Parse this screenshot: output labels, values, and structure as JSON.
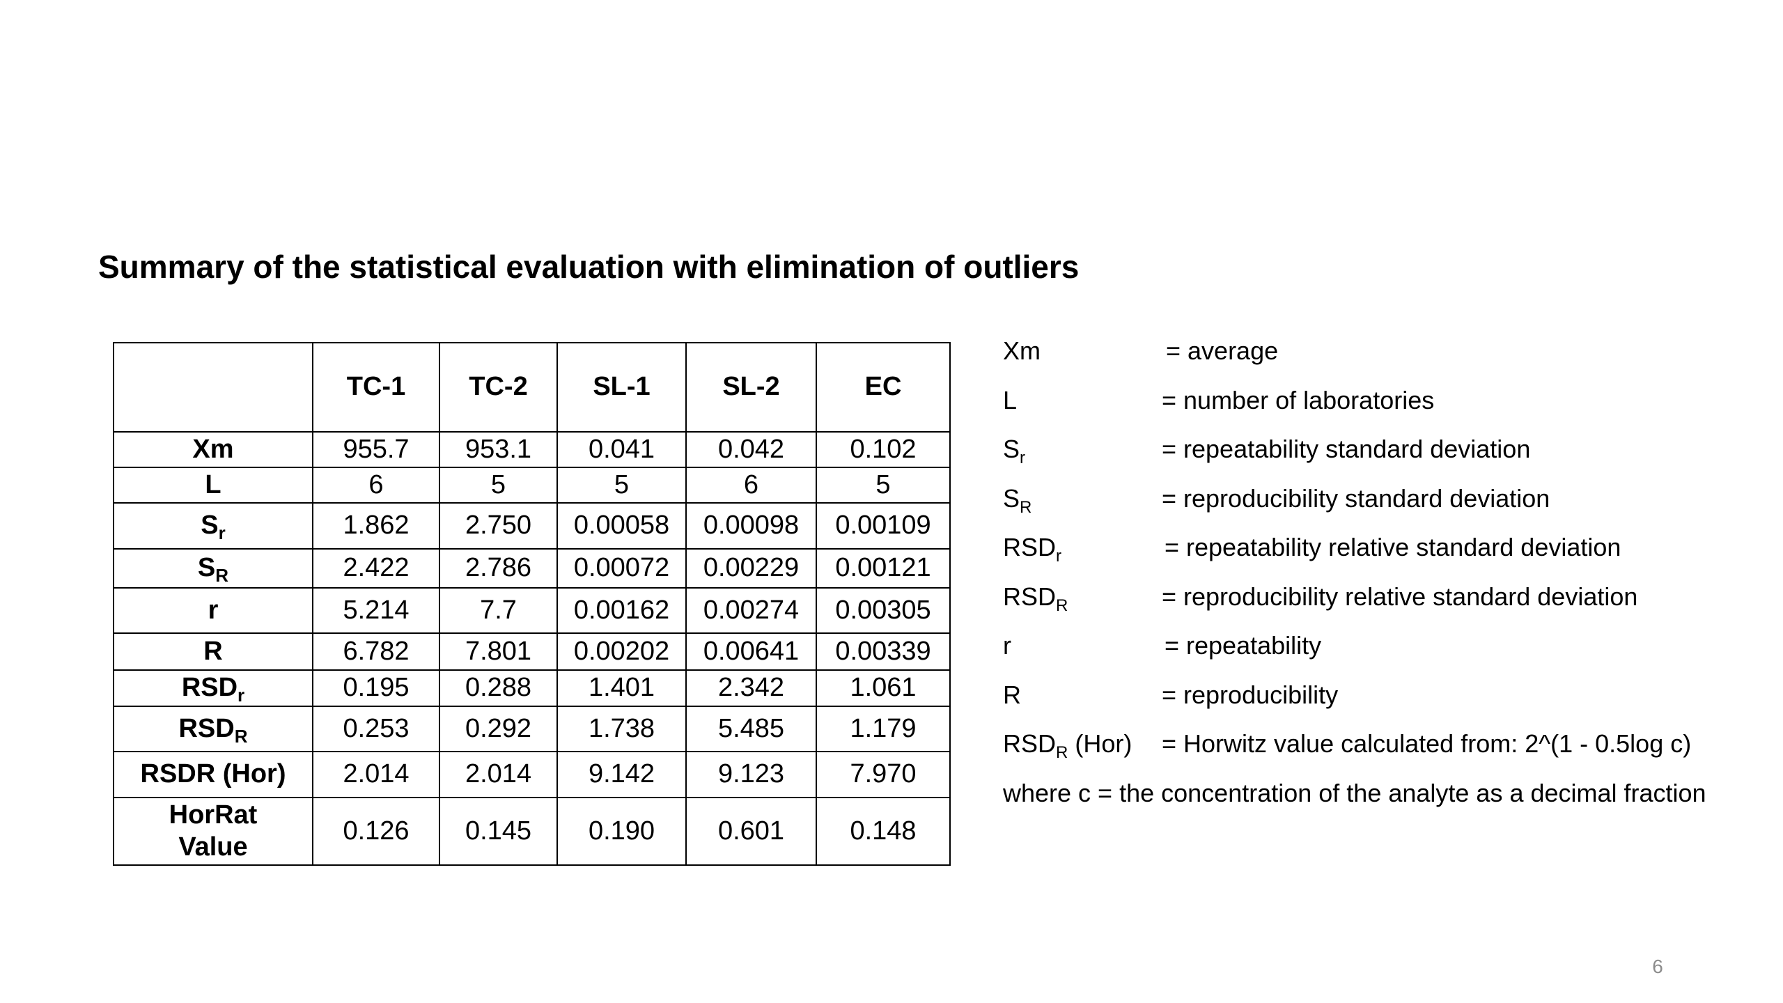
{
  "title": "Summary of the statistical evaluation with elimination of outliers",
  "table": {
    "columns": [
      "TC-1",
      "TC-2",
      "SL-1",
      "SL-2",
      "EC"
    ],
    "rows": [
      {
        "base": "Xm",
        "sub": "",
        "values": [
          "955.7",
          "953.1",
          "0.041",
          "0.042",
          "0.102"
        ]
      },
      {
        "base": "L",
        "sub": "",
        "values": [
          "6",
          "5",
          "5",
          "6",
          "5"
        ]
      },
      {
        "base": "S",
        "sub": "r",
        "values": [
          "1.862",
          "2.750",
          "0.00058",
          "0.00098",
          "0.00109"
        ]
      },
      {
        "base": "S",
        "sub": "R",
        "values": [
          "2.422",
          "2.786",
          "0.00072",
          "0.00229",
          "0.00121"
        ]
      },
      {
        "base": "r",
        "sub": "",
        "values": [
          "5.214",
          "7.7",
          "0.00162",
          "0.00274",
          "0.00305"
        ]
      },
      {
        "base": "R",
        "sub": "",
        "values": [
          "6.782",
          "7.801",
          "0.00202",
          "0.00641",
          "0.00339"
        ]
      },
      {
        "base": "RSD",
        "sub": "r",
        "values": [
          "0.195",
          "0.288",
          "1.401",
          "2.342",
          "1.061"
        ]
      },
      {
        "base": "RSD",
        "sub": "R",
        "values": [
          "0.253",
          "0.292",
          "1.738",
          "5.485",
          "1.179"
        ]
      },
      {
        "base": "RSDR (Hor)",
        "sub": "",
        "values": [
          "2.014",
          "2.014",
          "9.142",
          "9.123",
          "7.970"
        ]
      },
      {
        "base": "HorRat",
        "line2": "Value",
        "sub": "",
        "values": [
          "0.126",
          "0.145",
          "0.190",
          "0.601",
          "0.148"
        ]
      }
    ]
  },
  "legend": {
    "items": [
      {
        "base": "Xm",
        "sub": "",
        "suffix": "",
        "def": "= average"
      },
      {
        "base": "L",
        "sub": "",
        "suffix": "",
        "def": "= number of laboratories"
      },
      {
        "base": "S",
        "sub": "r",
        "suffix": "",
        "def": "= repeatability standard deviation"
      },
      {
        "base": "S",
        "sub": "R",
        "suffix": "",
        "def": "= reproducibility standard deviation"
      },
      {
        "base": "RSD",
        "sub": "r",
        "suffix": "",
        "def": "= repeatability relative standard deviation"
      },
      {
        "base": "RSD",
        "sub": "R",
        "suffix": "",
        "def": "= reproducibility relative standard deviation"
      },
      {
        "base": "r",
        "sub": "",
        "suffix": "",
        "def": "= repeatability"
      },
      {
        "base": "R",
        "sub": "",
        "suffix": "",
        "def": "= reproducibility"
      },
      {
        "base": "RSD",
        "sub": "R",
        "suffix": " (Hor)",
        "def": "= Horwitz value calculated from: 2^(1 - 0.5log c)"
      }
    ],
    "note": "where c = the concentration of the analyte as a decimal fraction"
  },
  "page_number": "6"
}
